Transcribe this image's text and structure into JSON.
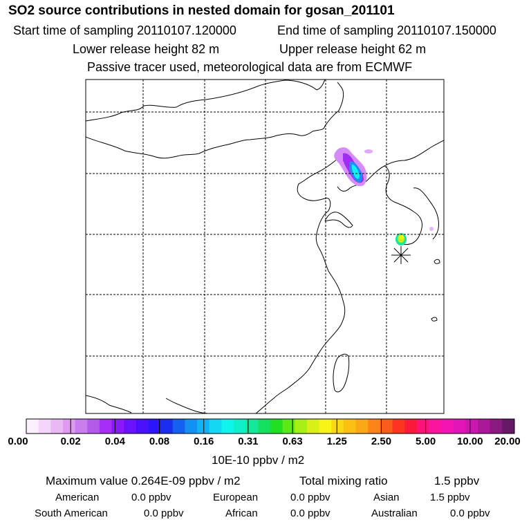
{
  "header": {
    "title": "SO2 source contributions in nested domain for gosan_201101",
    "start_time": "Start time of sampling 20110107.120000",
    "end_time": "End time of sampling 20110107.150000",
    "lower_release": "Lower release height   82 m",
    "upper_release": "Upper release height   62 m",
    "tracer_note": "Passive tracer used, meteorological data are from ECMWF"
  },
  "colorbar": {
    "colors": [
      "#fdf0fe",
      "#f5d6fb",
      "#ebb8f6",
      "#e09af2",
      "#c97eee",
      "#b45ae9",
      "#a42ef5",
      "#8a18f9",
      "#6a12fd",
      "#4a10fd",
      "#2c14fb",
      "#1a2ef0",
      "#1560f0",
      "#1290f4",
      "#10b4f6",
      "#12d8f4",
      "#10f4f0",
      "#10f0c8",
      "#12e898",
      "#14e060",
      "#20e020",
      "#5fe818",
      "#a8f014",
      "#d8f016",
      "#f8f418",
      "#fad816",
      "#fbc012",
      "#fba816",
      "#fb8418",
      "#fb5c1c",
      "#fc3420",
      "#fb1a3c",
      "#fc1478",
      "#fb14a0",
      "#f414b4",
      "#e214b6",
      "#cc16b0",
      "#aa1898",
      "#881a80",
      "#661866"
    ],
    "labels": [
      "0.00",
      "0.02",
      "0.04",
      "0.08",
      "0.16",
      "0.31",
      "0.63",
      "1.25",
      "2.50",
      "5.00",
      "10.00",
      "20.00"
    ],
    "units": "10E-10 ppbv / m2"
  },
  "stats": {
    "maximum": "Maximum value  0.264E-09 ppbv / m2",
    "total_label": "Total mixing ratio",
    "total_value": "1.5 ppbv",
    "regions": [
      {
        "name": "American",
        "value": "0.0 ppbv"
      },
      {
        "name": "European",
        "value": "0.0 ppbv"
      },
      {
        "name": "Asian",
        "value": "1.5 ppbv"
      },
      {
        "name": "South American",
        "value": "0.0 ppbv"
      },
      {
        "name": "African",
        "value": "0.0 ppbv"
      },
      {
        "name": "Australian",
        "value": "0.0 ppbv"
      }
    ]
  }
}
